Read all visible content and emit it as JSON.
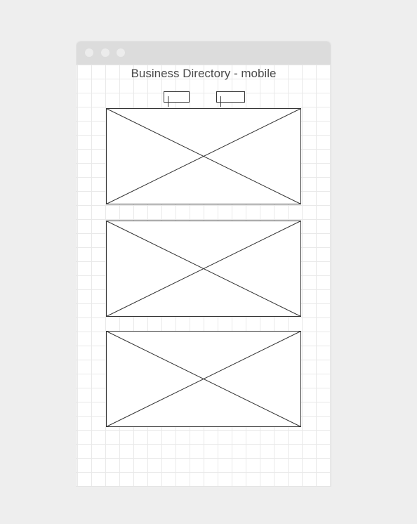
{
  "window": {
    "title": "Business Directory - mobile",
    "controls": [
      "close",
      "minimize",
      "maximize"
    ]
  },
  "tabs": [
    {
      "label": ""
    },
    {
      "label": ""
    }
  ],
  "listings": [
    {
      "image": "image-placeholder"
    },
    {
      "image": "image-placeholder"
    },
    {
      "image": "image-placeholder"
    }
  ],
  "colors": {
    "page_background": "#eeeeee",
    "titlebar": "#dcdcdc",
    "grid_line": "#e9e9e9",
    "stroke": "#333333",
    "title_text": "#4a4a4a"
  }
}
